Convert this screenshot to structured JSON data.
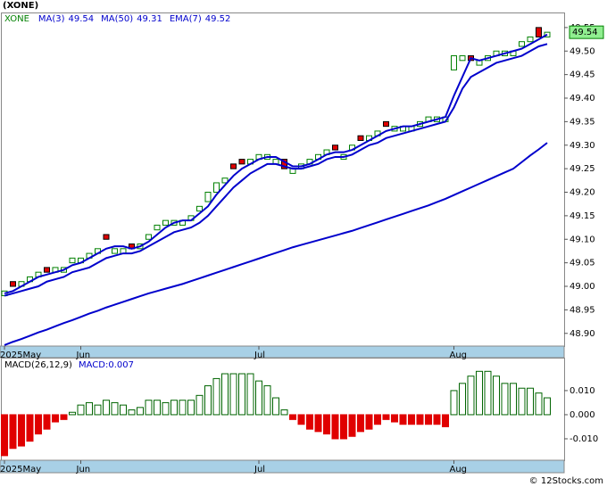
{
  "footer": "© 12Stocks.com",
  "chart_data": [
    {
      "type": "candlestick",
      "title": "(XONE)",
      "categories": [
        "2025May",
        null,
        null,
        null,
        null,
        null,
        null,
        null,
        null,
        "Jun",
        null,
        null,
        null,
        null,
        null,
        null,
        null,
        null,
        null,
        null,
        null,
        null,
        null,
        null,
        null,
        null,
        null,
        null,
        null,
        null,
        "Jul",
        null,
        null,
        null,
        null,
        null,
        null,
        null,
        null,
        null,
        null,
        null,
        null,
        null,
        null,
        null,
        null,
        null,
        null,
        null,
        null,
        null,
        null,
        "Aug",
        null,
        null,
        null,
        null,
        null,
        null,
        null,
        null,
        null,
        null,
        null
      ],
      "ylim": [
        48.873,
        49.582
      ],
      "yticks": [
        {
          "value": 48.9,
          "label": "48.90"
        },
        48.95,
        {
          "value": 49,
          "label": "49.00"
        },
        49.05,
        {
          "value": 49.1,
          "label": "49.10"
        },
        49.15,
        {
          "value": 49.2,
          "label": "49.20"
        },
        49.25,
        {
          "value": 49.3,
          "label": "49.30"
        },
        49.35,
        {
          "value": 49.4,
          "label": "49.40"
        },
        49.45,
        {
          "value": 49.5,
          "label": "49.50"
        },
        49.55
      ],
      "series": [
        {
          "name": "XONE",
          "color": "#008000",
          "down_color": "#e00000",
          "open": [
            48.98,
            49.01,
            49.0,
            49.01,
            49.02,
            49.04,
            49.03,
            49.03,
            49.05,
            49.05,
            49.06,
            49.07,
            49.11,
            49.07,
            49.07,
            49.09,
            49.08,
            49.1,
            49.12,
            49.13,
            49.13,
            49.13,
            49.14,
            49.16,
            49.18,
            49.2,
            49.22,
            49.26,
            49.27,
            49.26,
            49.27,
            49.27,
            49.26,
            49.27,
            49.24,
            49.25,
            49.26,
            49.27,
            49.28,
            49.3,
            49.27,
            49.29,
            49.32,
            49.31,
            49.32,
            49.35,
            49.33,
            49.33,
            49.33,
            49.34,
            49.35,
            49.35,
            49.35,
            49.46,
            49.48,
            49.49,
            49.47,
            49.48,
            49.49,
            49.49,
            49.49,
            49.51,
            49.52,
            49.55,
            49.53
          ],
          "close": [
            48.99,
            49.0,
            49.01,
            49.02,
            49.03,
            49.03,
            49.04,
            49.04,
            49.06,
            49.06,
            49.07,
            49.08,
            49.1,
            49.08,
            49.08,
            49.08,
            49.09,
            49.11,
            49.13,
            49.14,
            49.14,
            49.14,
            49.15,
            49.17,
            49.2,
            49.22,
            49.23,
            49.25,
            49.26,
            49.27,
            49.28,
            49.28,
            49.27,
            49.25,
            49.25,
            49.26,
            49.27,
            49.28,
            49.29,
            49.29,
            49.28,
            49.3,
            49.31,
            49.32,
            49.33,
            49.34,
            49.34,
            49.34,
            49.34,
            49.35,
            49.36,
            49.36,
            49.36,
            49.49,
            49.49,
            49.48,
            49.48,
            49.49,
            49.5,
            49.5,
            49.5,
            49.52,
            49.53,
            49.53,
            49.54
          ]
        },
        {
          "name": "MA(3)",
          "type": "line",
          "color": "#0000cc",
          "last": 49.54,
          "values": [
            48.985,
            48.99,
            49.0,
            49.01,
            49.02,
            49.025,
            49.03,
            49.035,
            49.045,
            49.05,
            49.06,
            49.07,
            49.08,
            49.085,
            49.085,
            49.08,
            49.085,
            49.095,
            49.11,
            49.125,
            49.135,
            49.14,
            49.14,
            49.155,
            49.17,
            49.195,
            49.215,
            49.235,
            49.25,
            49.26,
            49.27,
            49.275,
            49.275,
            49.265,
            49.255,
            49.255,
            49.26,
            49.27,
            49.28,
            49.285,
            49.285,
            49.29,
            49.3,
            49.31,
            49.32,
            49.33,
            49.335,
            49.34,
            49.34,
            49.345,
            49.35,
            49.355,
            49.36,
            49.405,
            49.445,
            49.485,
            49.48,
            49.485,
            49.49,
            49.495,
            49.5,
            49.505,
            49.515,
            49.525,
            49.535
          ]
        },
        {
          "name": "MA(50)",
          "type": "line",
          "color": "#0000cc",
          "last": 49.31,
          "values": [
            48.875,
            48.882,
            48.888,
            48.895,
            48.902,
            48.908,
            48.915,
            48.922,
            48.928,
            48.935,
            48.942,
            48.948,
            48.955,
            48.961,
            48.967,
            48.973,
            48.979,
            48.985,
            48.99,
            48.995,
            49.0,
            49.005,
            49.011,
            49.017,
            49.023,
            49.029,
            49.035,
            49.041,
            49.047,
            49.053,
            49.059,
            49.065,
            49.071,
            49.077,
            49.083,
            49.088,
            49.093,
            49.098,
            49.103,
            49.108,
            49.113,
            49.118,
            49.124,
            49.13,
            49.136,
            49.142,
            49.148,
            49.154,
            49.16,
            49.166,
            49.172,
            49.179,
            49.186,
            49.194,
            49.202,
            49.21,
            49.218,
            49.226,
            49.234,
            49.242,
            49.25,
            49.264,
            49.278,
            49.291,
            49.305
          ]
        },
        {
          "name": "EMA(7)",
          "type": "line",
          "color": "#0000cc",
          "last": 49.52,
          "values": [
            48.98,
            48.985,
            48.99,
            48.995,
            49.0,
            49.01,
            49.015,
            49.02,
            49.03,
            49.035,
            49.04,
            49.05,
            49.06,
            49.065,
            49.07,
            49.07,
            49.075,
            49.085,
            49.095,
            49.105,
            49.115,
            49.12,
            49.125,
            49.135,
            49.15,
            49.17,
            49.19,
            49.21,
            49.225,
            49.24,
            49.25,
            49.26,
            49.26,
            49.255,
            49.25,
            49.25,
            49.255,
            49.26,
            49.27,
            49.275,
            49.275,
            49.28,
            49.29,
            49.3,
            49.305,
            49.315,
            49.32,
            49.325,
            49.33,
            49.335,
            49.34,
            49.345,
            49.35,
            49.38,
            49.42,
            49.445,
            49.455,
            49.465,
            49.475,
            49.48,
            49.485,
            49.49,
            49.5,
            49.51,
            49.515
          ]
        }
      ]
    },
    {
      "type": "bar",
      "title": "MACD(26,12,9)",
      "subtitle": "MACD:0.007",
      "color": "#006400",
      "down_color": "#e00000",
      "categories": [
        "2025May",
        null,
        null,
        null,
        null,
        null,
        null,
        null,
        null,
        "Jun",
        null,
        null,
        null,
        null,
        null,
        null,
        null,
        null,
        null,
        null,
        null,
        null,
        null,
        null,
        null,
        null,
        null,
        null,
        null,
        null,
        "Jul",
        null,
        null,
        null,
        null,
        null,
        null,
        null,
        null,
        null,
        null,
        null,
        null,
        null,
        null,
        null,
        null,
        null,
        null,
        null,
        null,
        null,
        null,
        "Aug",
        null,
        null,
        null,
        null,
        null,
        null,
        null,
        null,
        null,
        null,
        null
      ],
      "ylim": [
        -0.0189,
        0.0233
      ],
      "yticks": [
        {
          "value": 0.01,
          "label": "0.010"
        },
        {
          "value": 0,
          "label": "0.000"
        },
        {
          "value": -0.01,
          "label": "-0.010"
        }
      ],
      "values": [
        -0.017,
        -0.014,
        -0.013,
        -0.011,
        -0.008,
        -0.006,
        -0.003,
        -0.002,
        0.001,
        0.004,
        0.005,
        0.004,
        0.006,
        0.005,
        0.004,
        0.002,
        0.003,
        0.006,
        0.006,
        0.005,
        0.006,
        0.006,
        0.006,
        0.008,
        0.012,
        0.015,
        0.017,
        0.017,
        0.017,
        0.017,
        0.014,
        0.012,
        0.007,
        0.002,
        -0.002,
        -0.004,
        -0.006,
        -0.007,
        -0.008,
        -0.01,
        -0.01,
        -0.009,
        -0.007,
        -0.006,
        -0.004,
        -0.002,
        -0.003,
        -0.004,
        -0.004,
        -0.004,
        -0.004,
        -0.004,
        -0.005,
        0.01,
        0.013,
        0.016,
        0.018,
        0.018,
        0.016,
        0.013,
        0.013,
        0.011,
        0.011,
        0.009,
        0.007
      ]
    }
  ]
}
